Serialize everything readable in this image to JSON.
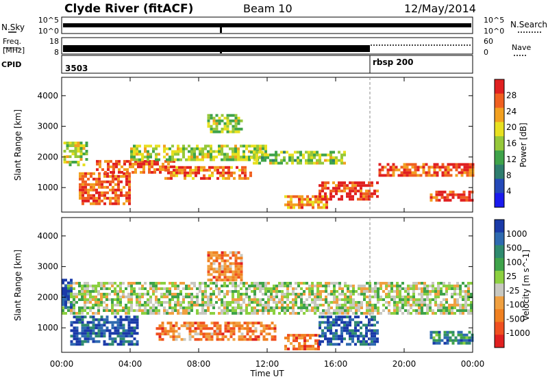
{
  "header": {
    "station": "Clyde River (fitACF)",
    "beam": "Beam 10",
    "date": "12/May/2014"
  },
  "top_panels": {
    "nsky_label": "N.Sky",
    "nsky_top": "10^5",
    "nsky_bottom": "10^0",
    "nsearch_label": "N.Search",
    "nsearch_top": "10^5",
    "nsearch_bottom": "10^0",
    "freq_label_1": "Freq.",
    "freq_label_2": "[MHz]",
    "freq_top": "18",
    "freq_bottom": "8",
    "nave_label": "Nave",
    "nave_top": "60",
    "nave_bottom": "0",
    "cpid_label": "CPID",
    "cpid_main": "3503",
    "cpid_second": "rbsp 200"
  },
  "chart_data": [
    {
      "type": "heatmap",
      "panel": "power",
      "ylabel": "Slant Range [km]",
      "yticks": [
        "1000",
        "2000",
        "3000",
        "4000"
      ],
      "ylim": [
        200,
        4600
      ],
      "colorbar_label": "Power [dB]",
      "colorbar_ticks": [
        "4",
        "8",
        "12",
        "16",
        "20",
        "24",
        "28"
      ],
      "colors": [
        "#1a1aee",
        "#2449b8",
        "#2e7d6e",
        "#3fa34a",
        "#96c83a",
        "#e8e020",
        "#f2a020",
        "#f06020",
        "#e02020"
      ],
      "bands": [
        {
          "t0": 0.1,
          "t1": 1.5,
          "r0": 1700,
          "r1": 2500,
          "level": 0.55
        },
        {
          "t0": 1.0,
          "t1": 4.0,
          "r0": 500,
          "r1": 1500,
          "level": 0.85
        },
        {
          "t0": 2.0,
          "t1": 6.5,
          "r0": 1500,
          "r1": 1900,
          "level": 0.85
        },
        {
          "t0": 6.0,
          "t1": 11.0,
          "r0": 1300,
          "r1": 1700,
          "level": 0.8
        },
        {
          "t0": 4.0,
          "t1": 12.0,
          "r0": 1900,
          "r1": 2400,
          "level": 0.55
        },
        {
          "t0": 8.5,
          "t1": 10.5,
          "r0": 2800,
          "r1": 3400,
          "level": 0.5
        },
        {
          "t0": 11.0,
          "t1": 16.5,
          "r0": 1800,
          "r1": 2200,
          "level": 0.5
        },
        {
          "t0": 13.0,
          "t1": 15.5,
          "r0": 350,
          "r1": 750,
          "level": 0.75
        },
        {
          "t0": 15.0,
          "t1": 18.5,
          "r0": 600,
          "r1": 1200,
          "level": 0.9
        },
        {
          "t0": 18.5,
          "t1": 24.0,
          "r0": 1400,
          "r1": 1800,
          "level": 0.85
        },
        {
          "t0": 21.5,
          "t1": 24.0,
          "r0": 600,
          "r1": 900,
          "level": 0.9
        }
      ]
    },
    {
      "type": "heatmap",
      "panel": "velocity",
      "ylabel": "Slant Range [km]",
      "yticks": [
        "1000",
        "2000",
        "3000",
        "4000"
      ],
      "ylim": [
        200,
        4600
      ],
      "colorbar_label": "Velocity [m s^-1]",
      "colorbar_ticks": [
        "1000",
        "500",
        "100",
        "25",
        "-25",
        "-100",
        "-500",
        "-1000"
      ],
      "colors": [
        "#1a3aa8",
        "#2e6ab0",
        "#2e8a6e",
        "#3fa34a",
        "#8cd040",
        "#c8c8c0",
        "#f0a040",
        "#f08020",
        "#f05020",
        "#e02020"
      ],
      "bands": [
        {
          "t0": 0.0,
          "t1": 24.0,
          "r0": 1500,
          "r1": 2500,
          "level": 0.5
        },
        {
          "t0": 0.5,
          "t1": 4.5,
          "r0": 500,
          "r1": 1400,
          "level": 0.1
        },
        {
          "t0": 0.0,
          "t1": 0.6,
          "r0": 1700,
          "r1": 2600,
          "level": 0.05
        },
        {
          "t0": 5.5,
          "t1": 12.5,
          "r0": 600,
          "r1": 1200,
          "level": 0.75
        },
        {
          "t0": 8.5,
          "t1": 10.5,
          "r0": 2600,
          "r1": 3500,
          "level": 0.75
        },
        {
          "t0": 13.0,
          "t1": 15.0,
          "r0": 300,
          "r1": 800,
          "level": 0.78
        },
        {
          "t0": 15.0,
          "t1": 18.5,
          "r0": 500,
          "r1": 1400,
          "level": 0.1
        },
        {
          "t0": 21.5,
          "t1": 24.0,
          "r0": 500,
          "r1": 900,
          "level": 0.25
        }
      ]
    }
  ],
  "x_axis": {
    "label": "Time UT",
    "ticks": [
      "00:00",
      "04:00",
      "08:00",
      "12:00",
      "16:00",
      "20:00",
      "00:00"
    ],
    "range_hours": [
      0,
      24
    ],
    "marker_hour": 18.0
  }
}
